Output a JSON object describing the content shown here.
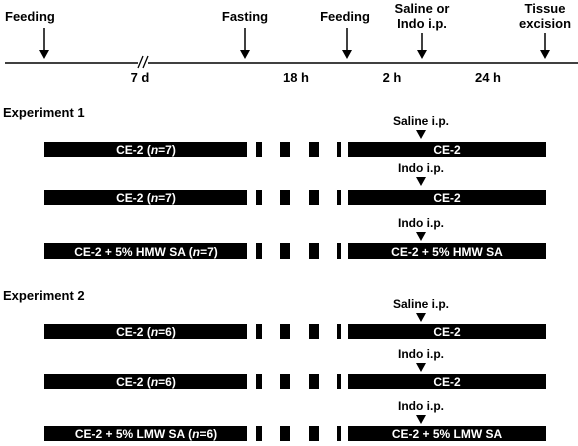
{
  "timeline": {
    "events": [
      {
        "label": "Feeding"
      },
      {
        "label": "Fasting"
      },
      {
        "label": "Feeding"
      },
      {
        "label_line1": "Saline or",
        "label_line2": "Indo i.p."
      },
      {
        "label_line1": "Tissue",
        "label_line2": "excision"
      }
    ],
    "durations": [
      "7 d",
      "18 h",
      "2 h",
      "24 h"
    ]
  },
  "experiment1": {
    "title": "Experiment 1",
    "rows": [
      {
        "marker": "Saline i.p.",
        "left_pre": "CE-2 (",
        "n": "n",
        "left_post": "=7)",
        "right": "CE-2"
      },
      {
        "marker": "Indo i.p.",
        "left_pre": "CE-2 (",
        "n": "n",
        "left_post": "=7)",
        "right": "CE-2"
      },
      {
        "marker": "Indo i.p.",
        "left_pre": "CE-2 + 5% HMW SA (",
        "n": "n",
        "left_post": "=7)",
        "right": "CE-2 + 5% HMW SA"
      }
    ]
  },
  "experiment2": {
    "title": "Experiment 2",
    "rows": [
      {
        "marker": "Saline i.p.",
        "left_pre": "CE-2 (",
        "n": "n",
        "left_post": "=6)",
        "right": "CE-2"
      },
      {
        "marker": "Indo i.p.",
        "left_pre": "CE-2 (",
        "n": "n",
        "left_post": "=6)",
        "right": "CE-2"
      },
      {
        "marker": "Indo i.p.",
        "left_pre": "CE-2 + 5% LMW SA  (",
        "n": "n",
        "left_post": "=6)",
        "right": "CE-2 + 5% LMW SA"
      }
    ]
  }
}
